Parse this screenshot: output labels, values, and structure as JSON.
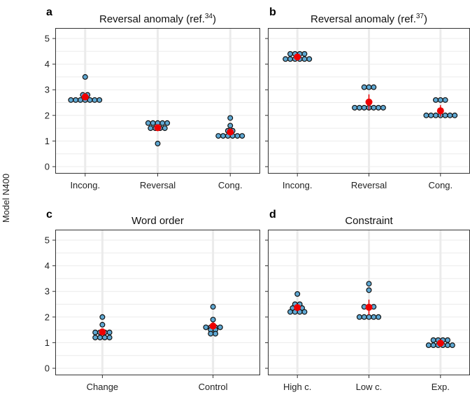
{
  "figure": {
    "ylabel": "Model N400"
  },
  "chart_data": [
    {
      "type": "scatter",
      "panel": "a",
      "title": "Reversal anomaly (ref.",
      "title_superscript": "34",
      "title_suffix": ")",
      "categories": [
        "Incong.",
        "Reversal",
        "Cong."
      ],
      "ylim": [
        0,
        5
      ],
      "yticks": [
        0,
        1,
        2,
        3,
        4,
        5
      ],
      "grid": true,
      "points": [
        [
          3.5,
          2.8,
          2.8,
          2.6,
          2.6,
          2.6,
          2.6,
          2.6,
          2.6,
          2.6
        ],
        [
          1.7,
          1.7,
          1.7,
          1.7,
          1.7,
          1.5,
          1.5,
          1.5,
          1.5,
          0.9
        ],
        [
          1.9,
          1.6,
          1.4,
          1.4,
          1.2,
          1.2,
          1.2,
          1.2,
          1.2,
          1.2
        ]
      ],
      "means": [
        2.72,
        1.52,
        1.35
      ],
      "errors": [
        0.1,
        0.13,
        0.12
      ]
    },
    {
      "type": "scatter",
      "panel": "b",
      "title": "Reversal anomaly (ref.",
      "title_superscript": "37",
      "title_suffix": ")",
      "categories": [
        "Incong.",
        "Reversal",
        "Cong."
      ],
      "ylim": [
        0,
        5
      ],
      "yticks": [
        0,
        1,
        2,
        3,
        4,
        5
      ],
      "grid": true,
      "points": [
        [
          4.4,
          4.4,
          4.4,
          4.4,
          4.2,
          4.2,
          4.2,
          4.2,
          4.2,
          4.2
        ],
        [
          3.1,
          3.1,
          3.1,
          2.3,
          2.3,
          2.3,
          2.3,
          2.3,
          2.3,
          2.3
        ],
        [
          2.6,
          2.6,
          2.6,
          2.0,
          2.0,
          2.0,
          2.0,
          2.0,
          2.0,
          2.0
        ]
      ],
      "means": [
        4.28,
        2.52,
        2.18
      ],
      "errors": [
        0.06,
        0.3,
        0.22
      ]
    },
    {
      "type": "scatter",
      "panel": "c",
      "title": "Word order",
      "categories": [
        "Change",
        "Control"
      ],
      "ylim": [
        0,
        5
      ],
      "yticks": [
        0,
        1,
        2,
        3,
        4,
        5
      ],
      "grid": true,
      "points": [
        [
          2.0,
          1.7,
          1.4,
          1.4,
          1.4,
          1.4,
          1.2,
          1.2,
          1.2,
          1.2
        ],
        [
          2.4,
          1.9,
          1.6,
          1.6,
          1.6,
          1.6,
          1.5,
          1.5,
          1.35,
          1.35
        ]
      ],
      "means": [
        1.42,
        1.65
      ],
      "errors": [
        0.1,
        0.14
      ]
    },
    {
      "type": "scatter",
      "panel": "d",
      "title": "Constraint",
      "categories": [
        "High c.",
        "Low c.",
        "Exp."
      ],
      "ylim": [
        0,
        5
      ],
      "yticks": [
        0,
        1,
        2,
        3,
        4,
        5
      ],
      "grid": true,
      "points": [
        [
          2.9,
          2.5,
          2.5,
          2.35,
          2.35,
          2.35,
          2.2,
          2.2,
          2.2,
          2.2
        ],
        [
          3.3,
          3.05,
          2.4,
          2.4,
          2.4,
          2.0,
          2.0,
          2.0,
          2.0,
          2.0
        ],
        [
          1.1,
          1.1,
          1.1,
          1.1,
          0.9,
          0.9,
          0.9,
          0.9,
          0.9,
          0.9
        ]
      ],
      "means": [
        2.37,
        2.38,
        0.98
      ],
      "errors": [
        0.1,
        0.3,
        0.06
      ]
    }
  ],
  "colors": {
    "background": "#ffffff",
    "grid": "#ebebeb",
    "point_fill": "#5fa8d3",
    "point_stroke": "#111111",
    "mean": "#ee0000",
    "frame": "#333333"
  }
}
